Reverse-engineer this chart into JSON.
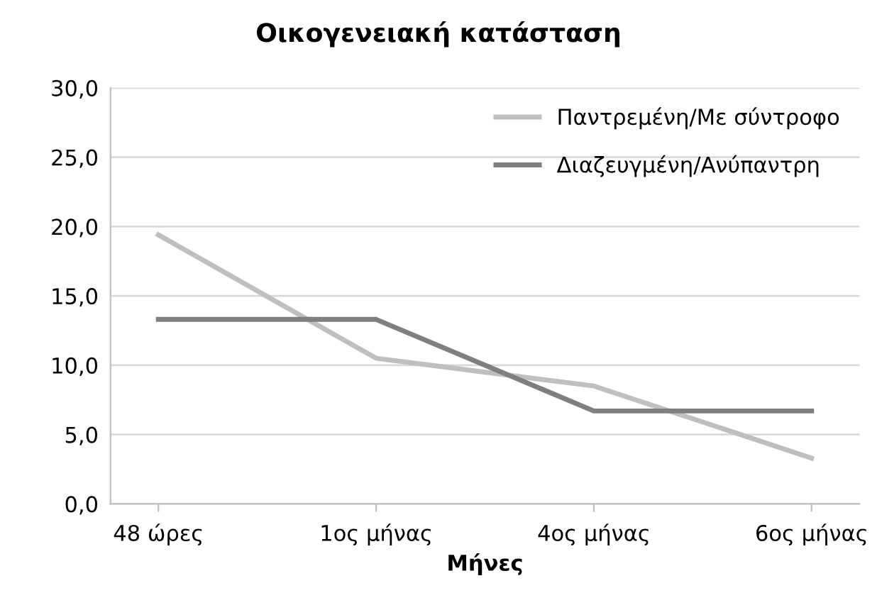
{
  "chart_data": {
    "type": "line",
    "title": "Οικογενειακή κατάσταση",
    "xlabel": "Μήνες",
    "categories": [
      "48 ώρες",
      "1ος μήνας",
      "4ος μήνας",
      "6ος μήνας"
    ],
    "series": [
      {
        "name": "Παντρεμένη/Με σύντροφο",
        "color": "#bfbfbf",
        "values": [
          19.4,
          10.5,
          8.5,
          3.3
        ]
      },
      {
        "name": "Διαζευγμένη/Ανύπαντρη",
        "color": "#7f7f7f",
        "values": [
          13.3,
          13.3,
          6.7,
          6.7
        ]
      }
    ],
    "ylim": [
      0,
      30
    ],
    "yticks": [
      {
        "value": 0,
        "label": "0,0"
      },
      {
        "value": 5,
        "label": "5,0"
      },
      {
        "value": 10,
        "label": "10,0"
      },
      {
        "value": 15,
        "label": "15,0"
      },
      {
        "value": 20,
        "label": "20,0"
      },
      {
        "value": 25,
        "label": "25,0"
      },
      {
        "value": 30,
        "label": "30,0"
      }
    ],
    "grid": "y",
    "legend": "top right",
    "marker": "none",
    "line_style": "solid"
  }
}
